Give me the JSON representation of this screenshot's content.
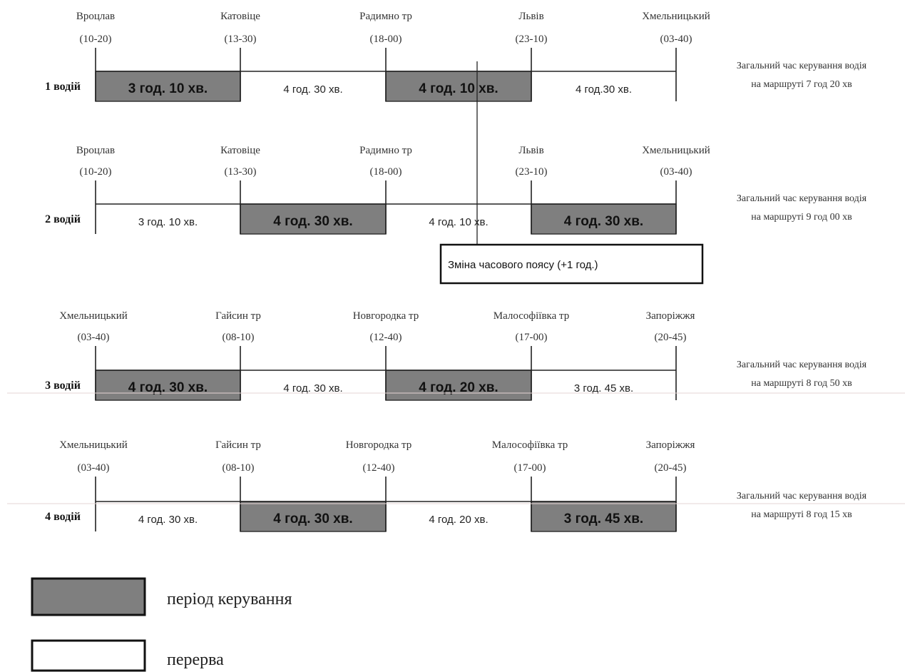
{
  "rows": [
    {
      "driver": "1 водій",
      "stops": [
        {
          "name": "Вроцлав",
          "time": "(10-20)"
        },
        {
          "name": "Катовіце",
          "time": "(13-30)"
        },
        {
          "name": "Радимно тр",
          "time": "(18-00)"
        },
        {
          "name": "Львів",
          "time": "(23-10)"
        },
        {
          "name": "Хмельницький",
          "time": "(03-40)"
        }
      ],
      "segments": [
        {
          "label": "3 год. 10 хв.",
          "kind": "drive"
        },
        {
          "label": "4 год. 30 хв.",
          "kind": "break"
        },
        {
          "label": "4 год. 10 хв.",
          "kind": "drive"
        },
        {
          "label": "4 год.30 хв.",
          "kind": "break"
        }
      ],
      "total": [
        "Загальний час керування водія",
        "на маршруті 7 год 20 хв"
      ]
    },
    {
      "driver": "2 водій",
      "stops": [
        {
          "name": "Вроцлав",
          "time": "(10-20)"
        },
        {
          "name": "Катовіце",
          "time": "(13-30)"
        },
        {
          "name": "Радимно тр",
          "time": "(18-00)"
        },
        {
          "name": "Львів",
          "time": "(23-10)"
        },
        {
          "name": "Хмельницький",
          "time": "(03-40)"
        }
      ],
      "segments": [
        {
          "label": "3 год. 10 хв.",
          "kind": "break"
        },
        {
          "label": "4 год. 30 хв.",
          "kind": "drive"
        },
        {
          "label": "4 год. 10 хв.",
          "kind": "break"
        },
        {
          "label": "4 год. 30 хв.",
          "kind": "drive"
        }
      ],
      "total": [
        "Загальний час керування водія",
        "на маршруті 9 год 00 хв"
      ]
    },
    {
      "driver": "3 водій",
      "stops": [
        {
          "name": "Хмельницький",
          "time": "(03-40)"
        },
        {
          "name": "Гайсин тр",
          "time": "(08-10)"
        },
        {
          "name": "Новгородка тр",
          "time": "(12-40)"
        },
        {
          "name": "Малософіївка тр",
          "time": "(17-00)"
        },
        {
          "name": "Запоріжжя",
          "time": "(20-45)"
        }
      ],
      "segments": [
        {
          "label": "4 год. 30 хв.",
          "kind": "drive"
        },
        {
          "label": "4 год. 30 хв.",
          "kind": "break"
        },
        {
          "label": "4 год. 20 хв.",
          "kind": "drive"
        },
        {
          "label": "3 год. 45 хв.",
          "kind": "break"
        }
      ],
      "total": [
        "Загальний час керування водія",
        "на маршруті 8 год 50 хв"
      ]
    },
    {
      "driver": "4 водій",
      "stops": [
        {
          "name": "Хмельницький",
          "time": "(03-40)"
        },
        {
          "name": "Гайсин тр",
          "time": "(08-10)"
        },
        {
          "name": "Новгородка тр",
          "time": "(12-40)"
        },
        {
          "name": "Малософіївка тр",
          "time": "(17-00)"
        },
        {
          "name": "Запоріжжя",
          "time": "(20-45)"
        }
      ],
      "segments": [
        {
          "label": "4 год. 30 хв.",
          "kind": "break"
        },
        {
          "label": "4 год. 30 хв.",
          "kind": "drive"
        },
        {
          "label": "4 год. 20 хв.",
          "kind": "break"
        },
        {
          "label": "3 год. 45 хв.",
          "kind": "drive"
        }
      ],
      "total": [
        "Загальний час керування водія",
        "на маршруті 8 год 15 хв"
      ]
    }
  ],
  "timezone_note": "Зміна часового поясу (+1 год.)",
  "legend": [
    {
      "label": "період керування",
      "kind": "drive"
    },
    {
      "label": "перерва",
      "kind": "break"
    }
  ],
  "colors": {
    "drive_fill": "#7f7f7f",
    "break_fill": "#ffffff",
    "line": "#222222"
  }
}
